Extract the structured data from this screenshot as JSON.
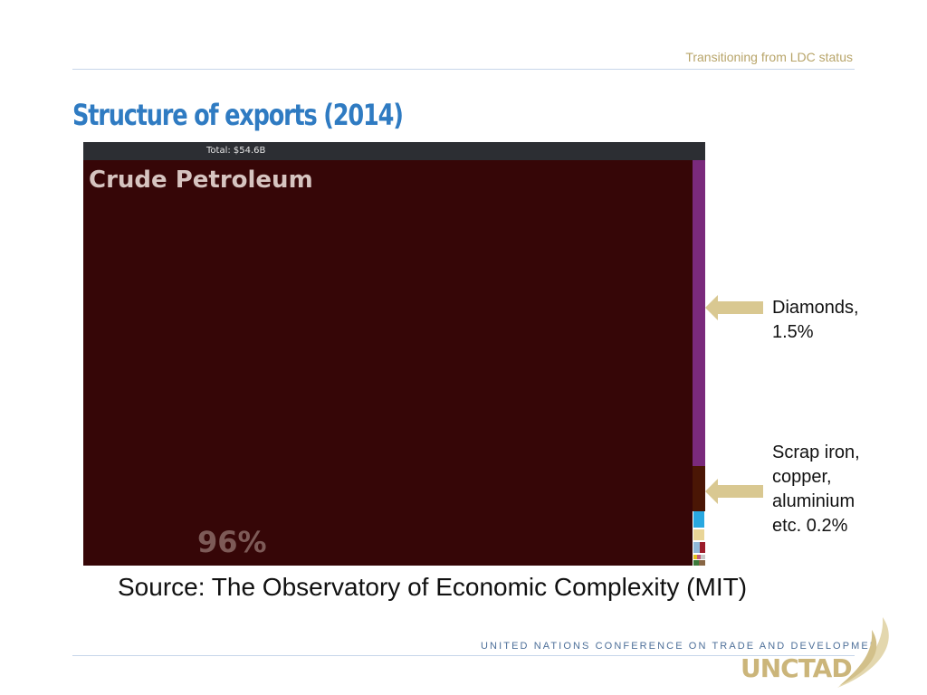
{
  "header": {
    "subtitle": "Transitioning from LDC status"
  },
  "slide": {
    "title": "Structure of exports (2014)"
  },
  "chart_data": {
    "type": "treemap",
    "total_label": "Total: $54.6B",
    "items": [
      {
        "name": "Crude Petroleum",
        "share": 96,
        "share_label": "96%",
        "color": "#360607"
      },
      {
        "name": "Diamonds",
        "share": 1.5,
        "color": "#7a2a7c"
      },
      {
        "name": "Scrap iron, copper, aluminium etc.",
        "share": 0.2,
        "color": "#4a1605"
      },
      {
        "name": "",
        "share": 0.3,
        "color": "#29a8e0"
      },
      {
        "name": "",
        "share": 0.15,
        "color": "#e9d597"
      },
      {
        "name": "",
        "share": 0.1,
        "color": "#8fb8d8"
      },
      {
        "name": "",
        "share": 0.1,
        "color": "#9c1c2a"
      }
    ]
  },
  "annotations": [
    {
      "lines": [
        "Diamonds,",
        "1.5%"
      ]
    },
    {
      "lines": [
        "Scrap iron,",
        "copper,",
        "aluminium",
        "etc. 0.2%"
      ]
    }
  ],
  "source": {
    "text": "Source: The Observatory of Economic Complexity (MIT)"
  },
  "footer": {
    "org_name": "UNITED NATIONS CONFERENCE ON TRADE AND DEVELOPMENT",
    "logo_text": "UNCTAD"
  },
  "colors": {
    "title": "#2f7bc2",
    "accent": "#cbb57a",
    "arrow": "#d9c891",
    "rule": "#c7d6ea"
  }
}
